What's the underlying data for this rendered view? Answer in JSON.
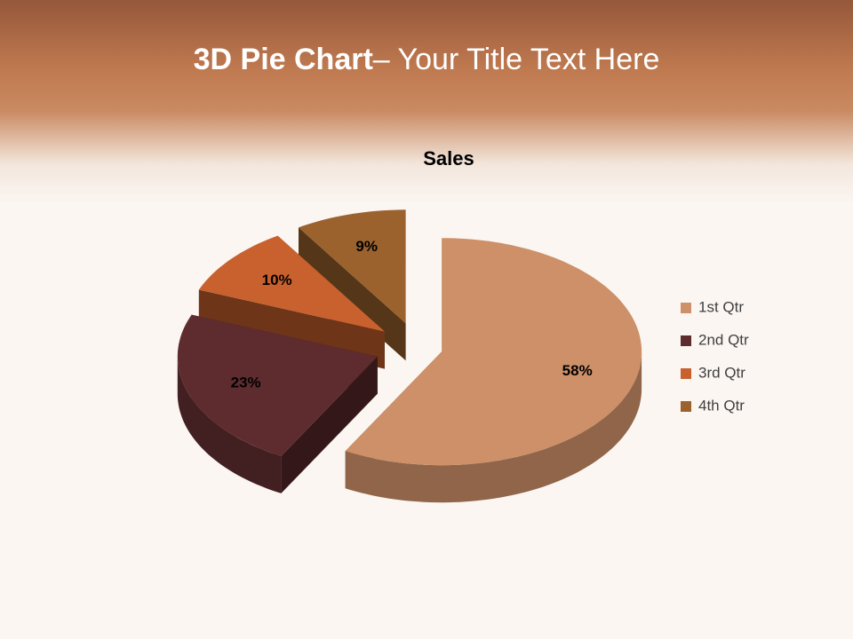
{
  "slide": {
    "title_bold": "3D Pie Chart",
    "title_rest": "– Your Title Text Here"
  },
  "chart_data": {
    "type": "pie",
    "title": "Sales",
    "categories": [
      "1st Qtr",
      "2nd Qtr",
      "3rd Qtr",
      "4th Qtr"
    ],
    "values": [
      58,
      23,
      10,
      9
    ],
    "value_labels": [
      "58%",
      "23%",
      "10%",
      "9%"
    ],
    "colors": [
      "#cd9068",
      "#5e2c2e",
      "#c8612e",
      "#9b622e"
    ],
    "legend": "right"
  }
}
